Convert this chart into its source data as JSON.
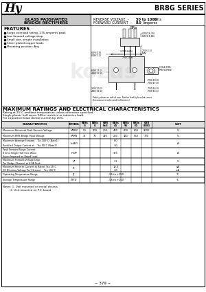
{
  "title": "BR8G SERIES",
  "header_left_line1": "GLASS PASSIVATED",
  "header_left_line2": "BRIDGE RECTIFIERS",
  "features_title": "FEATURES",
  "features": [
    "Surge overload rating -175 amperes peak",
    "Low forward voltage drop",
    "Small size, simple installation",
    "Silver plated copper leads",
    "Mounting position: Any"
  ],
  "max_ratings_title": "MAXIMUM RATINGS AND ELECTRICAL CHARACTERISTICS",
  "ratings_note1": "Rating at 25°C ambient temperature unless otherwise specified.",
  "ratings_note2": "Single phase, half wave, 60Hz, resistive or inductive load.",
  "ratings_note3": "For capacitive load, derate current by 20%.",
  "page_num": "~ 379 ~",
  "bg_color": "#ffffff",
  "header_bg": "#c8c8c8",
  "table_header_bg": "#e0e0e0"
}
